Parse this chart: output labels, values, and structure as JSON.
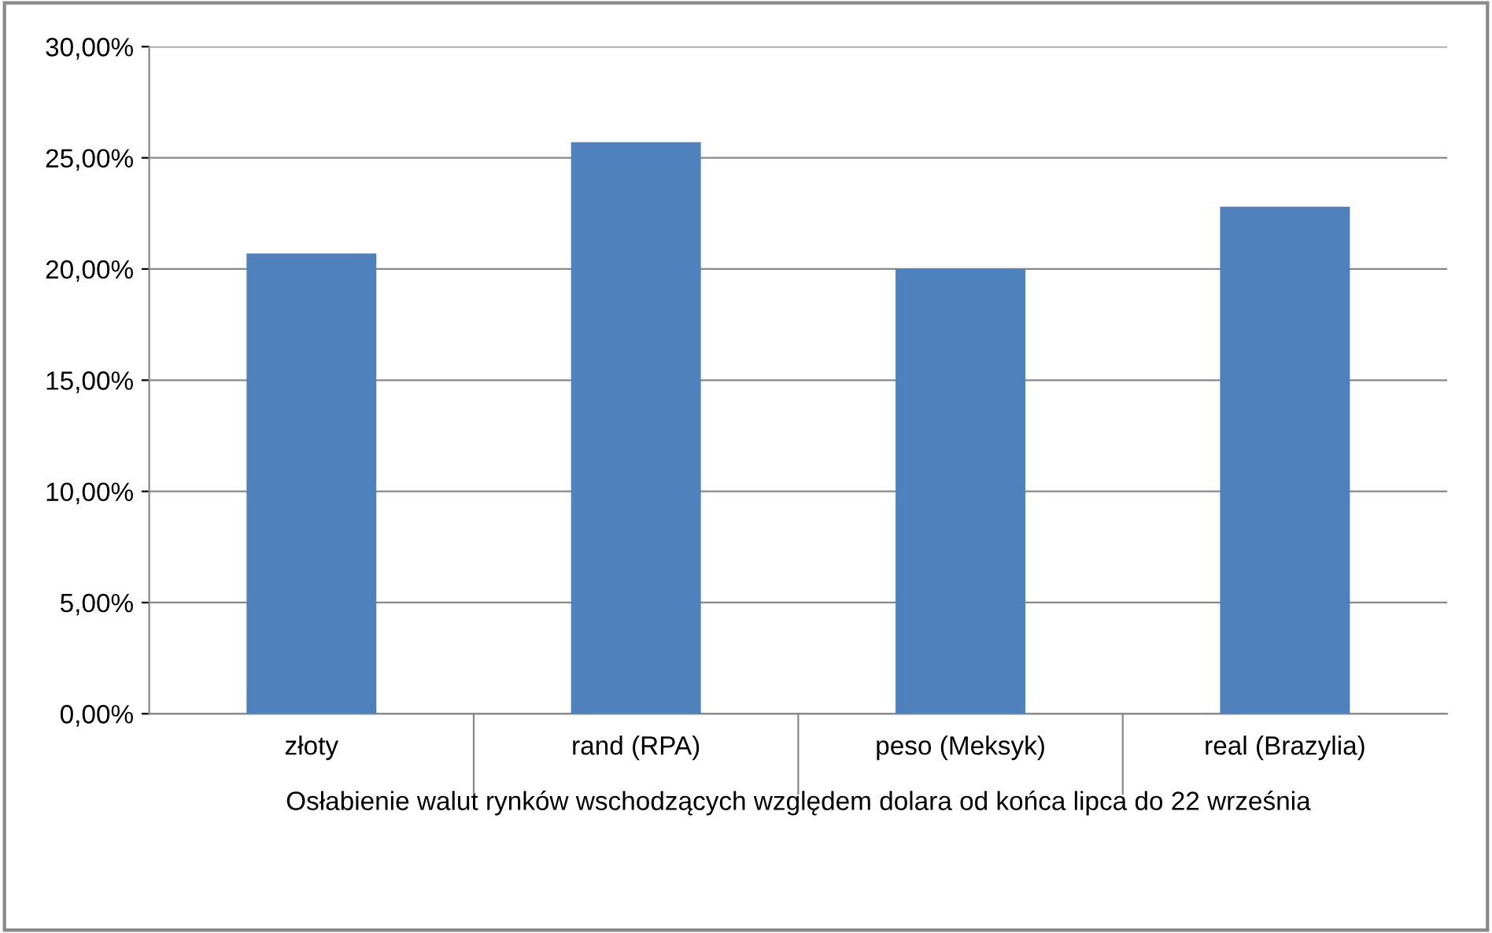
{
  "chart_data": {
    "type": "bar",
    "xlabel": "Osłabienie walut rynków wschodzących względem dolara od końca lipca do 22 września",
    "categories": [
      "złoty",
      "rand (RPA)",
      "peso (Meksyk)",
      "real (Brazylia)"
    ],
    "values": [
      20.7,
      25.7,
      20.0,
      22.8
    ],
    "color": "#4f81bd",
    "ylim": [
      0,
      30
    ],
    "yticks": [
      {
        "value": 0,
        "label": "0,00%"
      },
      {
        "value": 5,
        "label": "5,00%"
      },
      {
        "value": 10,
        "label": "10,00%"
      },
      {
        "value": 15,
        "label": "15,00%"
      },
      {
        "value": 20,
        "label": "20,00%"
      },
      {
        "value": 25,
        "label": "25,00%"
      },
      {
        "value": 30,
        "label": "30,00%"
      }
    ],
    "grid": "y",
    "legend": false
  }
}
